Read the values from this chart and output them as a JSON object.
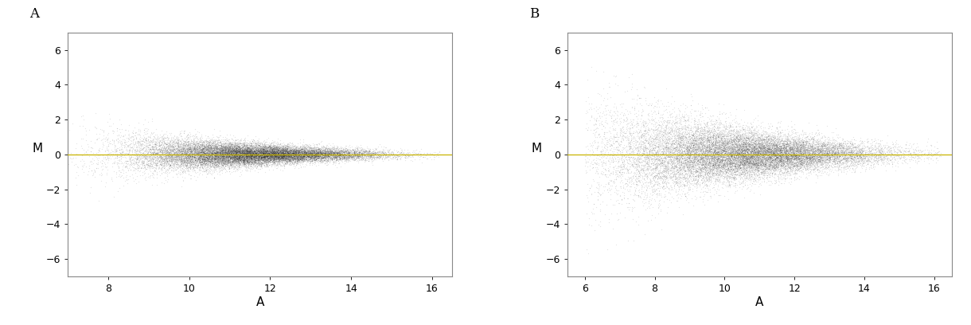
{
  "panel_A": {
    "label": "A",
    "xlim": [
      7,
      16.5
    ],
    "ylim": [
      -7,
      7
    ],
    "xticks": [
      8,
      10,
      12,
      14,
      16
    ],
    "yticks": [
      -6,
      -4,
      -2,
      0,
      2,
      4,
      6
    ],
    "xlabel": "A",
    "ylabel": "M",
    "n_points": 22000,
    "A_mean": 11.5,
    "A_std": 1.5,
    "A_min": 7.0,
    "A_max": 16.2,
    "M_spread_low": 1.0,
    "M_spread_high": 0.08,
    "M_decay": 3.0,
    "hline_y": 0,
    "hline_color": "#c8b400",
    "seed": 42
  },
  "panel_B": {
    "label": "B",
    "xlim": [
      5.5,
      16.5
    ],
    "ylim": [
      -7,
      7
    ],
    "xticks": [
      6,
      8,
      10,
      12,
      14,
      16
    ],
    "yticks": [
      -6,
      -4,
      -2,
      0,
      2,
      4,
      6
    ],
    "xlabel": "A",
    "ylabel": "M",
    "n_points": 22000,
    "A_mean": 10.5,
    "A_std": 2.0,
    "A_min": 6.0,
    "A_max": 16.2,
    "M_spread_low": 1.8,
    "M_spread_high": 0.12,
    "M_decay": 2.5,
    "hline_y": 0,
    "hline_color": "#c8b400",
    "seed": 77
  },
  "point_color": "#222222",
  "point_alpha": 0.12,
  "point_size": 0.8,
  "bg_color": "#ffffff",
  "panel_bg": "#ffffff",
  "label_fontsize": 12,
  "tick_fontsize": 9,
  "axis_label_fontsize": 11
}
